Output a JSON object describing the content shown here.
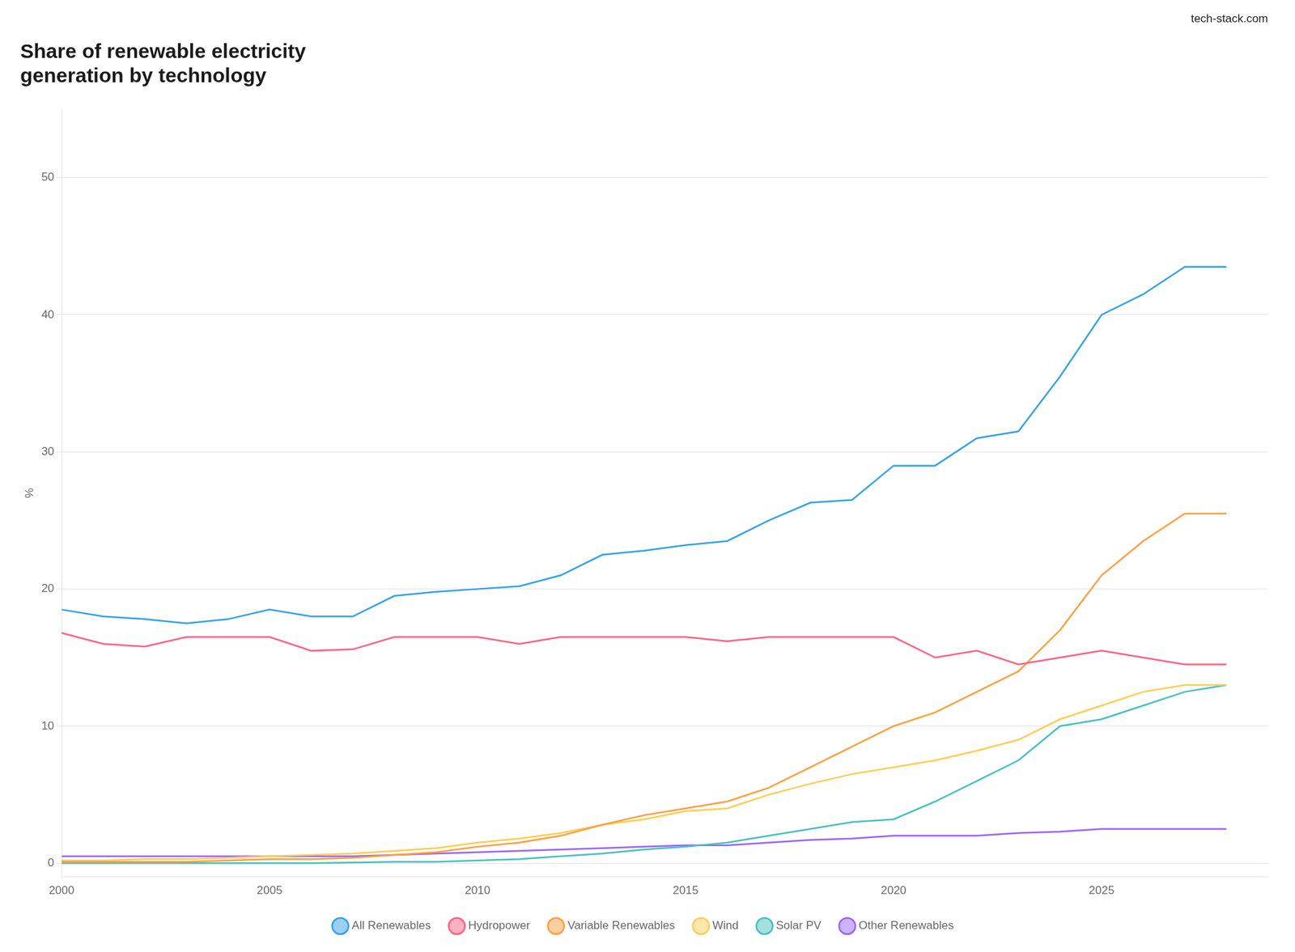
{
  "chart_data": {
    "type": "line",
    "title": "Share of renewable electricity\ngeneration by technology",
    "annotations": [
      "tech-stack.com"
    ],
    "y_label": "%",
    "x": [
      2000,
      2001,
      2002,
      2003,
      2004,
      2005,
      2006,
      2007,
      2008,
      2009,
      2010,
      2011,
      2012,
      2013,
      2014,
      2015,
      2016,
      2017,
      2018,
      2019,
      2020,
      2021,
      2022,
      2023,
      2024,
      2025,
      2026,
      2027,
      2028
    ],
    "series": [
      {
        "name": "All Renewables",
        "values": [
          18.5,
          18.0,
          17.8,
          17.5,
          17.8,
          18.5,
          18.0,
          18.0,
          19.5,
          19.8,
          20.0,
          20.2,
          21.0,
          22.5,
          22.8,
          23.2,
          23.5,
          25.0,
          26.3,
          26.5,
          29.0,
          29.0,
          31.0,
          31.5,
          35.5,
          40.0,
          41.5,
          43.5,
          43.5
        ]
      },
      {
        "name": "Hydropower",
        "values": [
          16.8,
          16.0,
          15.8,
          16.5,
          16.5,
          16.5,
          15.5,
          15.6,
          16.5,
          16.5,
          16.5,
          16.0,
          16.5,
          16.5,
          16.5,
          16.5,
          16.2,
          16.5,
          16.5,
          16.5,
          16.5,
          15.0,
          15.5,
          14.5,
          15.0,
          15.5,
          15.0,
          14.5,
          14.5
        ]
      },
      {
        "name": "Variable Renewables",
        "values": [
          0.1,
          0.1,
          0.1,
          0.1,
          0.2,
          0.3,
          0.3,
          0.4,
          0.6,
          0.8,
          1.2,
          1.5,
          2.0,
          2.8,
          3.5,
          4.0,
          4.5,
          5.5,
          7.0,
          8.5,
          10.0,
          11.0,
          12.5,
          14.0,
          17.0,
          21.0,
          23.5,
          25.5,
          25.5
        ]
      },
      {
        "name": "Wind",
        "values": [
          0.2,
          0.2,
          0.3,
          0.3,
          0.4,
          0.5,
          0.6,
          0.7,
          0.9,
          1.1,
          1.5,
          1.8,
          2.2,
          2.8,
          3.2,
          3.8,
          4.0,
          5.0,
          5.8,
          6.5,
          7.0,
          7.5,
          8.2,
          9.0,
          10.5,
          11.5,
          12.5,
          13.0,
          13.0
        ]
      },
      {
        "name": "Solar PV",
        "values": [
          0.0,
          0.0,
          0.0,
          0.0,
          0.0,
          0.0,
          0.0,
          0.05,
          0.1,
          0.1,
          0.2,
          0.3,
          0.5,
          0.7,
          1.0,
          1.2,
          1.5,
          2.0,
          2.5,
          3.0,
          3.2,
          4.5,
          6.0,
          7.5,
          10.0,
          10.5,
          11.5,
          12.5,
          13.0
        ]
      },
      {
        "name": "Other Renewables",
        "values": [
          0.5,
          0.5,
          0.5,
          0.5,
          0.5,
          0.5,
          0.5,
          0.5,
          0.6,
          0.7,
          0.8,
          0.9,
          1.0,
          1.1,
          1.2,
          1.3,
          1.3,
          1.5,
          1.7,
          1.8,
          2.0,
          2.0,
          2.0,
          2.2,
          2.3,
          2.5,
          2.5,
          2.5,
          2.5
        ]
      }
    ],
    "xlim": [
      2000,
      2029
    ],
    "xticks": [
      2000,
      2005,
      2010,
      2015,
      2020,
      2025
    ],
    "ylim": [
      -1,
      55
    ],
    "yticks": [
      0,
      10,
      20,
      30,
      40,
      50
    ],
    "grid": "y",
    "legend": "bottom"
  }
}
